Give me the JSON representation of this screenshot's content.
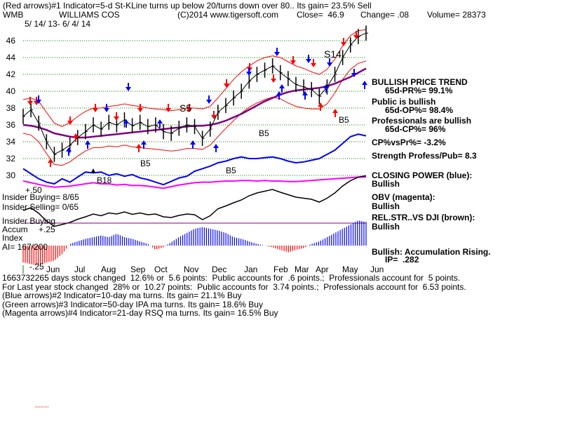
{
  "header": {
    "line1": "(Red arrows)#1 Indicator=5-d St-KLine turns up below 20/turns down over 80.. Its gain= 23.5% Sell",
    "ticker": "WMB",
    "company": "WILLIAMS COS",
    "source": "(C)2014 www.tigersoft.com",
    "close": "Close=  46.9",
    "change": "Change= .08",
    "volume": "Volume= 28373",
    "date_range": "5/ 14/ 13- 6/ 4/ 14"
  },
  "right_panel": {
    "trend_title": "BULLISH PRICE TREND",
    "pr": "65d-PR%= 99.1%",
    "public": "Public is bullish",
    "op": "65d-OP%= 98.4%",
    "professionals": "Professionals are bullish",
    "cp": "65d-CP%= 96%",
    "cpvspr": "CP%vsPr%= -3.2%",
    "strength": "Strength Profess/Pub= 8.3",
    "closing_power": "CLOSING POWER (blue):",
    "closing_power_state": "Bullish",
    "obv": "OBV (magenta):",
    "obv_state": "Bullish",
    "relstr": "REL.STR..VS DJI (brown):",
    "relstr_state": "Bullish",
    "accum": "Bullish: Accumulation Rising.",
    "ip": "IP=  .282"
  },
  "left_panel": {
    "insider_buying": "Insider Buying= 8/65",
    "insider_selling": "Insider Selling= 0/65",
    "insider_buying2": "Insider Buying",
    "accum": "Accum",
    "accum_plus": "+.25",
    "index": "Index",
    "plus50": "+.50",
    "ai": "AI= 167/200",
    "minus25": "-.25"
  },
  "annotations": {
    "s5": "S5",
    "s14": "S14",
    "b5a": "B5",
    "b5b": "B5",
    "b5c": "B5",
    "b5d": "B5",
    "b18": "B18"
  },
  "footer": {
    "line1": "1663732265 days stock changed  12.6% or  5.6 points:  Public accounts for  .6 points.;  Professionals account for  5 points.",
    "line2": "For Last year stock changed  28% or  10.27 points:  Public accounts for  3.74 points.;  Professionals account for  6.53 points.",
    "line3": "(Blue arrows)#2 Indicator=10-day ma turns. Its gain= 21.1% Buy",
    "line4": "(Green arrows)#3 Indicator=50-day IPA ma turns. Its gain= 18.6% Buy",
    "line5": "(Magenta arrows)#4 Indicator=21-day RSQ ma turns. Its gain= 16.5% Buy"
  },
  "colors": {
    "price": "#000000",
    "bands": "#ff0000",
    "ma65": "#800080",
    "closing_power": "#0000ff",
    "obv": "#ff00ff",
    "relstr": "#000000",
    "accum_pos": "#0000ff",
    "accum_neg": "#ff0000",
    "grid": "#008000",
    "red_arrow": "#ff0000",
    "blue_arrow": "#0000ff"
  },
  "chart_data": {
    "type": "line",
    "title": "WILLIAMS COS",
    "xlabel": "",
    "ylabel": "",
    "ylim": [
      29,
      47.5
    ],
    "y_ticks": [
      30,
      32,
      34,
      36,
      38,
      40,
      42,
      44,
      46
    ],
    "months": [
      "Jun",
      "Jul",
      "Aug",
      "Sep",
      "Oct",
      "Nov",
      "Dec",
      "Jan",
      "Feb",
      "Mar",
      "Apr",
      "May",
      "Jun"
    ],
    "price": [
      37.0,
      37.8,
      36.2,
      34.0,
      32.5,
      33.0,
      33.6,
      34.5,
      35.2,
      36.0,
      35.5,
      36.3,
      36.0,
      36.6,
      35.9,
      36.3,
      35.8,
      36.0,
      35.2,
      35.0,
      35.6,
      36.0,
      35.8,
      34.4,
      35.5,
      37.5,
      38.3,
      39.2,
      40.0,
      41.2,
      42.0,
      42.5,
      43.0,
      42.2,
      41.5,
      40.8,
      40.5,
      40.2,
      39.4,
      40.5,
      42.0,
      44.0,
      45.5,
      46.5,
      46.9
    ],
    "ma65": [
      36.0,
      35.9,
      35.7,
      35.4,
      35.0,
      34.8,
      34.6,
      34.5,
      34.5,
      34.6,
      34.7,
      34.8,
      34.9,
      35.0,
      35.1,
      35.2,
      35.3,
      35.4,
      35.5,
      35.6,
      35.7,
      35.8,
      35.9,
      35.9,
      36.0,
      36.2,
      36.5,
      36.9,
      37.3,
      37.8,
      38.3,
      38.8,
      39.2,
      39.6,
      39.9,
      40.1,
      40.2,
      40.3,
      40.4,
      40.6,
      40.9,
      41.3,
      41.7,
      42.2,
      42.7
    ],
    "upper_band": [
      39.0,
      39.2,
      38.8,
      37.5,
      36.2,
      35.8,
      36.3,
      37.0,
      37.6,
      38.0,
      38.0,
      38.2,
      38.3,
      38.5,
      38.3,
      38.2,
      38.0,
      37.9,
      37.8,
      37.7,
      37.8,
      38.0,
      38.0,
      37.9,
      38.2,
      39.2,
      40.3,
      41.4,
      42.3,
      43.0,
      43.6,
      44.0,
      44.2,
      44.0,
      43.5,
      43.0,
      42.7,
      42.3,
      42.0,
      42.6,
      43.8,
      45.4,
      46.6,
      47.2,
      47.3
    ],
    "lower_band": [
      35.0,
      34.8,
      34.0,
      32.6,
      31.3,
      31.2,
      31.6,
      32.3,
      32.9,
      33.3,
      33.3,
      33.5,
      33.4,
      33.6,
      33.4,
      33.3,
      33.2,
      33.1,
      33.0,
      32.9,
      33.0,
      33.2,
      33.2,
      33.1,
      33.6,
      34.6,
      35.6,
      36.5,
      37.4,
      38.1,
      38.6,
      39.0,
      39.3,
      39.1,
      38.6,
      38.2,
      38.0,
      37.9,
      37.9,
      38.5,
      39.8,
      41.4,
      42.6,
      43.3,
      43.6
    ],
    "closing_power": [
      30.8,
      30.2,
      29.6,
      29.2,
      29.0,
      29.6,
      29.2,
      29.8,
      30.4,
      30.3,
      30.4,
      30.0,
      30.2,
      29.9,
      30.1,
      29.7,
      29.5,
      29.2,
      28.9,
      29.3,
      29.7,
      29.9,
      30.5,
      30.8,
      31.1,
      31.5,
      31.7,
      32.0,
      32.2,
      32.0,
      32.0,
      32.1,
      32.2,
      32.0,
      31.7,
      31.5,
      31.6,
      31.8,
      32.0,
      32.5,
      33.0,
      33.8,
      34.6,
      34.9,
      34.7
    ],
    "obv": [
      29.3,
      29.0,
      28.7,
      28.4,
      28.2,
      28.3,
      28.4,
      28.6,
      28.8,
      29.0,
      28.8,
      28.8,
      28.6,
      28.7,
      28.5,
      28.5,
      28.4,
      28.2,
      28.0,
      28.3,
      28.6,
      28.8,
      29.0,
      29.1,
      29.1,
      29.2,
      29.3,
      29.3,
      29.4,
      29.4,
      29.3,
      29.4,
      29.3,
      29.3,
      29.2,
      29.2,
      29.3,
      29.4,
      29.5,
      29.6,
      29.7,
      29.8,
      29.9,
      30.0,
      30.0
    ],
    "accum_index": [
      -0.2,
      -0.22,
      -0.24,
      -0.2,
      -0.18,
      -0.1,
      0.02,
      0.05,
      0.08,
      0.1,
      0.12,
      0.1,
      0.14,
      0.1,
      0.08,
      0.05,
      0.02,
      -0.05,
      -0.02,
      0.04,
      0.1,
      0.15,
      0.2,
      0.22,
      0.2,
      0.18,
      0.15,
      0.1,
      0.08,
      0.05,
      0.02,
      0.0,
      -0.02,
      -0.05,
      -0.08,
      -0.05,
      -0.03,
      0.02,
      0.05,
      0.1,
      0.15,
      0.2,
      0.25,
      0.3,
      0.28
    ]
  }
}
